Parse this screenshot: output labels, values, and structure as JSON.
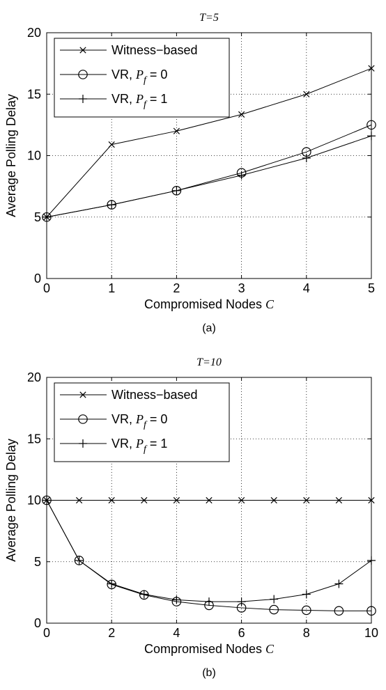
{
  "chart_data": [
    {
      "type": "line",
      "title": "T=5",
      "xlabel": "Compromised Nodes C",
      "ylabel": "Average Polling Delay",
      "caption": "(a)",
      "xlim": [
        0,
        5
      ],
      "ylim": [
        0,
        20
      ],
      "x_ticks": [
        0,
        1,
        2,
        3,
        4,
        5
      ],
      "y_ticks": [
        0,
        5,
        10,
        15,
        20
      ],
      "grid": true,
      "legend_position": "top-left",
      "series": [
        {
          "name": "Witness−based",
          "marker": "x",
          "x": [
            0,
            1,
            2,
            3,
            4,
            5
          ],
          "values": [
            5.0,
            10.9,
            12.0,
            13.35,
            15.0,
            17.1
          ]
        },
        {
          "name": "VR, P_f = 0",
          "marker": "o",
          "x": [
            0,
            1,
            2,
            3,
            4,
            5
          ],
          "values": [
            5.0,
            6.0,
            7.15,
            8.6,
            10.3,
            12.5
          ]
        },
        {
          "name": "VR, P_f = 1",
          "marker": "+",
          "x": [
            0,
            1,
            2,
            3,
            4,
            5
          ],
          "values": [
            5.0,
            6.0,
            7.15,
            8.4,
            9.8,
            11.6
          ]
        }
      ]
    },
    {
      "type": "line",
      "title": "T=10",
      "xlabel": "Compromised Nodes C",
      "ylabel": "Average Polling Delay",
      "caption": "(b)",
      "xlim": [
        0,
        10
      ],
      "ylim": [
        0,
        20
      ],
      "x_ticks": [
        0,
        2,
        4,
        6,
        8,
        10
      ],
      "y_ticks": [
        0,
        5,
        10,
        15,
        20
      ],
      "grid": true,
      "legend_position": "top-left",
      "series": [
        {
          "name": "Witness−based",
          "marker": "x",
          "x": [
            0,
            1,
            2,
            3,
            4,
            5,
            6,
            7,
            8,
            9,
            10
          ],
          "values": [
            10,
            10,
            10,
            10,
            10,
            10,
            10,
            10,
            10,
            10,
            10
          ]
        },
        {
          "name": "VR, P_f = 0",
          "marker": "o",
          "x": [
            0,
            1,
            2,
            3,
            4,
            5,
            6,
            7,
            8,
            9,
            10
          ],
          "values": [
            10.0,
            5.1,
            3.15,
            2.3,
            1.75,
            1.45,
            1.25,
            1.1,
            1.05,
            1.0,
            1.0
          ]
        },
        {
          "name": "VR, P_f = 1",
          "marker": "+",
          "x": [
            0,
            1,
            2,
            3,
            4,
            5,
            6,
            7,
            8,
            9,
            10
          ],
          "values": [
            10.0,
            5.1,
            3.2,
            2.35,
            1.9,
            1.75,
            1.75,
            1.95,
            2.35,
            3.2,
            5.1
          ]
        }
      ]
    }
  ]
}
